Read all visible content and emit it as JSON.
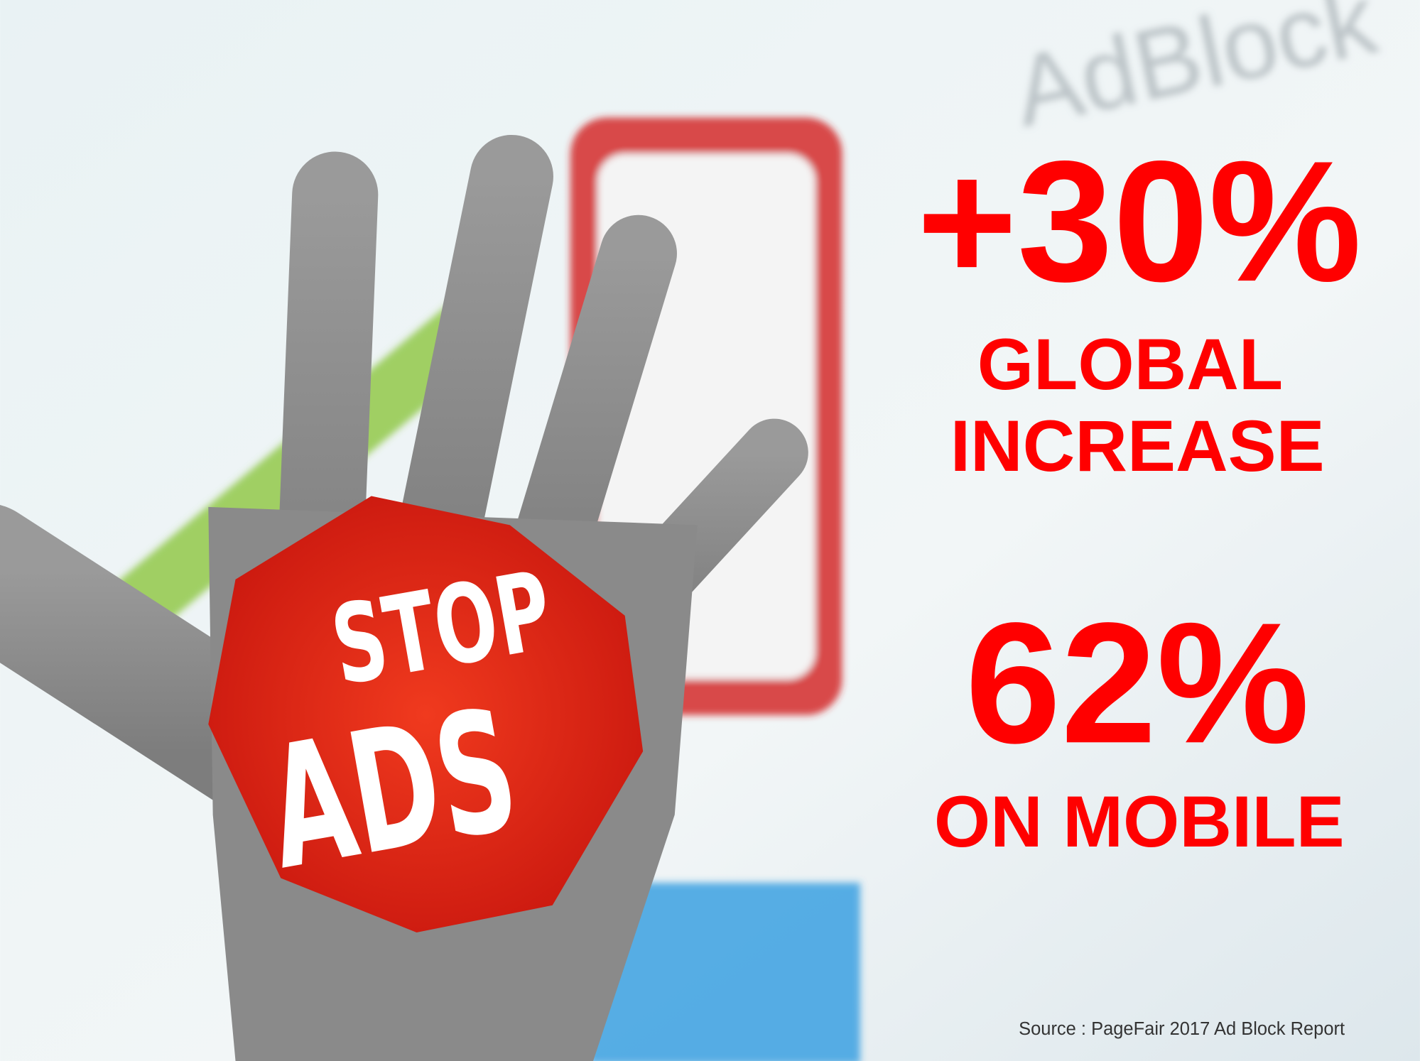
{
  "background": {
    "screen_text": "AdBlock"
  },
  "hand_sign": {
    "line1": "STOP",
    "line2": "ADS"
  },
  "stats": [
    {
      "value": "+30%",
      "caption_lines": [
        "GLOBAL",
        "INCREASE"
      ]
    },
    {
      "value": "62%",
      "caption_lines": [
        "ON MOBILE"
      ]
    }
  ],
  "source": "Source : PageFair 2017 Ad Block Report"
}
